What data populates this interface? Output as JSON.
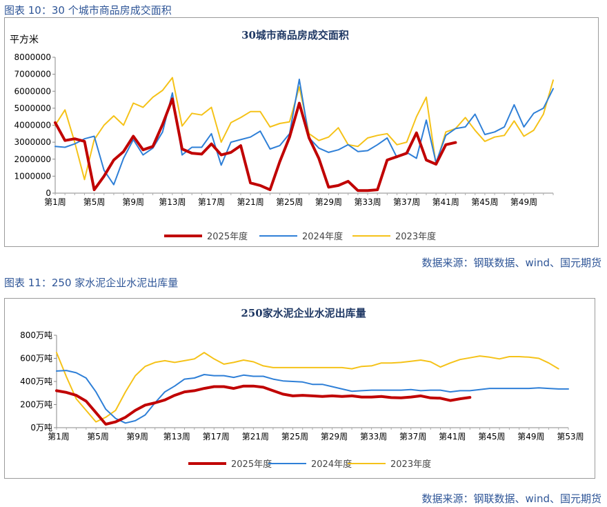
{
  "figure1": {
    "caption": "图表 10：30 个城市商品房成交面积",
    "source": "数据来源：钢联数据、wind、国元期货"
  },
  "figure2": {
    "caption": "图表 11：250 家水泥企业水泥出库量",
    "source": "数据来源：钢联数据、wind、国元期货"
  },
  "colors": {
    "s2025": "#c00000",
    "s2024": "#2e7fd7",
    "s2023": "#f5c218",
    "caption": "#2e5597"
  },
  "chart_data": [
    {
      "type": "line",
      "title": "30城市商品房成交面积",
      "ylabel": "平方米",
      "ylim": [
        0,
        8000000
      ],
      "yticks": [
        0,
        1000000,
        2000000,
        3000000,
        4000000,
        5000000,
        6000000,
        7000000,
        8000000
      ],
      "xlim": [
        1,
        52
      ],
      "xticks": [
        "第1周",
        "第5周",
        "第9周",
        "第13周",
        "第17周",
        "第21周",
        "第25周",
        "第29周",
        "第33周",
        "第37周",
        "第41周",
        "第45周",
        "第49周"
      ],
      "grid": false,
      "legend": "bottom",
      "series": [
        {
          "name": "2025年度",
          "color": "#c00000",
          "width": 4,
          "values": [
            4150000,
            3100000,
            3200000,
            3050000,
            200000,
            1000000,
            1950000,
            2450000,
            3350000,
            2550000,
            2750000,
            4050000,
            5550000,
            2600000,
            2350000,
            2300000,
            2900000,
            2250000,
            2400000,
            2800000,
            600000,
            450000,
            200000,
            1850000,
            3300000,
            5300000,
            3250000,
            2050000,
            350000,
            450000,
            700000,
            150000,
            150000,
            200000,
            1950000,
            2150000,
            2350000,
            3550000,
            1950000,
            1700000,
            2850000,
            2980000
          ]
        },
        {
          "name": "2024年度",
          "color": "#2e7fd7",
          "width": 2,
          "values": [
            2750000,
            2700000,
            2900000,
            3200000,
            3350000,
            1350000,
            500000,
            2050000,
            3150000,
            2250000,
            2650000,
            3600000,
            5900000,
            2250000,
            2700000,
            2700000,
            3500000,
            1650000,
            3000000,
            3150000,
            3300000,
            3650000,
            2600000,
            2800000,
            3500000,
            6700000,
            3250000,
            2650000,
            2400000,
            2550000,
            2850000,
            2450000,
            2500000,
            2850000,
            3250000,
            2100000,
            2400000,
            2050000,
            4300000,
            1800000,
            3400000,
            3800000,
            3900000,
            4650000,
            3450000,
            3600000,
            3900000,
            5200000,
            3900000,
            4700000,
            5000000,
            6150000
          ]
        },
        {
          "name": "2023年度",
          "color": "#f5c218",
          "width": 2,
          "values": [
            4000000,
            4900000,
            3000000,
            800000,
            3150000,
            4000000,
            4550000,
            4000000,
            5300000,
            5050000,
            5650000,
            6050000,
            6800000,
            3950000,
            4700000,
            4600000,
            5050000,
            3000000,
            4150000,
            4450000,
            4800000,
            4800000,
            3900000,
            4100000,
            4200000,
            6250000,
            3500000,
            3100000,
            3300000,
            3850000,
            2850000,
            2750000,
            3250000,
            3400000,
            3500000,
            2850000,
            3000000,
            4500000,
            5650000,
            1700000,
            3600000,
            3800000,
            4450000,
            3700000,
            3050000,
            3300000,
            3400000,
            4250000,
            3350000,
            3700000,
            4650000,
            6650000
          ]
        }
      ]
    },
    {
      "type": "line",
      "title": "250家水泥企业水泥出库量",
      "ylim": [
        0,
        800
      ],
      "yticks": [
        "0万吨",
        "200万吨",
        "400万吨",
        "600万吨",
        "800万吨"
      ],
      "yvalues": [
        0,
        200,
        400,
        600,
        800
      ],
      "xlim": [
        1,
        53
      ],
      "xticks": [
        "第1周",
        "第5周",
        "第9周",
        "第13周",
        "第17周",
        "第21周",
        "第25周",
        "第29周",
        "第33周",
        "第37周",
        "第41周",
        "第45周",
        "第49周",
        "第53周"
      ],
      "grid": false,
      "legend": "bottom",
      "series": [
        {
          "name": "2025年度",
          "color": "#c00000",
          "width": 4,
          "values": [
            320,
            305,
            280,
            230,
            130,
            30,
            50,
            90,
            150,
            195,
            215,
            240,
            280,
            310,
            320,
            340,
            355,
            355,
            340,
            360,
            360,
            350,
            320,
            290,
            275,
            280,
            275,
            270,
            275,
            270,
            275,
            265,
            265,
            270,
            260,
            258,
            265,
            275,
            258,
            255,
            235,
            250,
            262
          ]
        },
        {
          "name": "2024年度",
          "color": "#2e7fd7",
          "width": 2,
          "values": [
            490,
            495,
            475,
            430,
            310,
            160,
            80,
            40,
            60,
            110,
            215,
            310,
            360,
            420,
            430,
            460,
            450,
            450,
            435,
            455,
            445,
            445,
            420,
            405,
            400,
            395,
            375,
            375,
            355,
            335,
            315,
            320,
            325,
            325,
            325,
            325,
            330,
            320,
            325,
            325,
            310,
            320,
            320,
            330,
            340,
            340,
            340,
            340,
            340,
            345,
            340,
            335,
            335
          ]
        },
        {
          "name": "2023年度",
          "color": "#f5c218",
          "width": 2,
          "values": [
            650,
            440,
            250,
            150,
            50,
            90,
            150,
            310,
            450,
            530,
            565,
            580,
            565,
            580,
            595,
            650,
            595,
            550,
            565,
            585,
            570,
            535,
            520,
            520,
            520,
            520,
            520,
            520,
            520,
            520,
            510,
            530,
            535,
            560,
            560,
            565,
            575,
            585,
            570,
            525,
            560,
            590,
            605,
            620,
            610,
            595,
            615,
            615,
            610,
            600,
            560,
            510
          ]
        }
      ]
    }
  ]
}
